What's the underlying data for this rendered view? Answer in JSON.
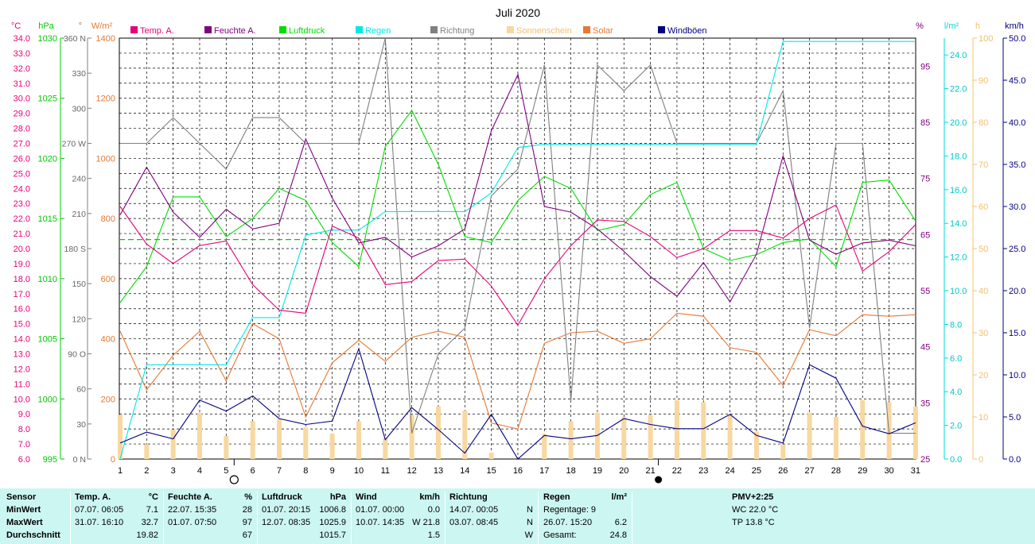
{
  "chart_data": {
    "type": "line",
    "title": "Juli 2020",
    "x": [
      1,
      2,
      3,
      4,
      5,
      6,
      7,
      8,
      9,
      10,
      11,
      12,
      13,
      14,
      15,
      16,
      17,
      18,
      19,
      20,
      21,
      22,
      23,
      24,
      25,
      26,
      27,
      28,
      29,
      30,
      31
    ],
    "axes": {
      "temp": {
        "unit": "°C",
        "range": [
          6.0,
          34.0
        ],
        "ticks": [
          "34.0",
          "33.0",
          "32.0",
          "31.0",
          "30.0",
          "29.0",
          "28.0",
          "27.0",
          "26.0",
          "25.0",
          "24.0",
          "23.0",
          "22.0",
          "21.0",
          "20.0",
          "19.0",
          "18.0",
          "17.0",
          "16.0",
          "15.0",
          "14.0",
          "13.0",
          "12.0",
          "11.0",
          "10.0",
          "9.0",
          "8.0",
          "7.0",
          "6.0"
        ],
        "color": "#e8007a"
      },
      "pressure": {
        "unit": "hPa",
        "range": [
          995,
          1030
        ],
        "ticks": [
          "1030",
          "1025",
          "1020",
          "1015",
          "1010",
          "1005",
          "1000",
          "995"
        ],
        "color": "#00c800"
      },
      "direction": {
        "unit": "°",
        "range": [
          0,
          360
        ],
        "ticks": [
          {
            "v": 360,
            "l": "360 N"
          },
          {
            "v": 330,
            "l": "330"
          },
          {
            "v": 300,
            "l": "300"
          },
          {
            "v": 270,
            "l": "270 W"
          },
          {
            "v": 240,
            "l": "240"
          },
          {
            "v": 210,
            "l": "210"
          },
          {
            "v": 180,
            "l": "180 S"
          },
          {
            "v": 150,
            "l": "150"
          },
          {
            "v": 120,
            "l": "120"
          },
          {
            "v": 90,
            "l": "90  O"
          },
          {
            "v": 60,
            "l": "60"
          },
          {
            "v": 30,
            "l": "30"
          },
          {
            "v": 0,
            "l": "0  N"
          }
        ],
        "color": "#808080"
      },
      "solar": {
        "unit": "W/m²",
        "range": [
          0,
          1400
        ],
        "ticks": [
          "1400",
          "1200",
          "1000",
          "800",
          "600",
          "400",
          "200",
          "0"
        ],
        "color": "#e87830"
      },
      "humidity": {
        "unit": "%",
        "range": [
          25,
          100
        ],
        "ticks": [
          "95",
          "85",
          "75",
          "65",
          "55",
          "45",
          "35",
          "25"
        ],
        "color": "#800080"
      },
      "rain": {
        "unit": "l/m²",
        "range": [
          0,
          25
        ],
        "ticks": [
          "24.0",
          "22.0",
          "20.0",
          "18.0",
          "16.0",
          "14.0",
          "12.0",
          "10.0",
          "8.0",
          "6.0",
          "4.0",
          "2.0",
          "0.0"
        ],
        "color": "#00d8d8"
      },
      "sun": {
        "unit": "h",
        "range": [
          0,
          100
        ],
        "ticks": [
          "100",
          "90",
          "80",
          "70",
          "60",
          "50",
          "40",
          "30",
          "20",
          "10",
          "0"
        ],
        "color": "#f0c070"
      },
      "wind": {
        "unit": "km/h",
        "range": [
          0,
          50
        ],
        "ticks": [
          "50.0",
          "45.0",
          "40.0",
          "35.0",
          "30.0",
          "25.0",
          "20.0",
          "15.0",
          "10.0",
          "5.0",
          "0.0"
        ],
        "color": "#000080"
      }
    },
    "series": [
      {
        "name": "Temp. A.",
        "axis": "temp",
        "color": "#e8007a",
        "values": [
          22.8,
          20.3,
          19.0,
          20.2,
          20.5,
          17.6,
          15.9,
          15.7,
          21.5,
          20.7,
          17.6,
          17.8,
          19.2,
          19.3,
          17.5,
          14.9,
          18.0,
          20.2,
          21.9,
          21.8,
          20.8,
          19.4,
          20.0,
          21.2,
          21.2,
          20.7,
          22.0,
          22.9,
          18.5,
          19.8,
          21.6
        ]
      },
      {
        "name": "Feuchte A.",
        "axis": "humidity",
        "color": "#800080",
        "values": [
          68.5,
          77.0,
          69.0,
          64.5,
          69.5,
          66.0,
          67.0,
          82.0,
          71.5,
          63.5,
          64.5,
          61.0,
          63.0,
          66.0,
          83.5,
          93.5,
          70.0,
          69.0,
          66.0,
          62.0,
          57.5,
          54.0,
          60.0,
          53.0,
          61.5,
          79.0,
          64.0,
          61.5,
          63.5,
          64.0,
          63.0
        ]
      },
      {
        "name": "Luftdruck",
        "axis": "pressure",
        "color": "#00dd00",
        "values": [
          1008.0,
          1011.0,
          1016.8,
          1016.8,
          1013.5,
          1015.0,
          1017.5,
          1016.5,
          1013.0,
          1011.0,
          1021.0,
          1024.0,
          1019.5,
          1013.5,
          1013.0,
          1016.5,
          1018.5,
          1017.5,
          1014.0,
          1014.5,
          1017.0,
          1018.0,
          1012.5,
          1011.5,
          1012.0,
          1013.0,
          1013.3,
          1011.0,
          1018.0,
          1018.2,
          1014.8
        ]
      },
      {
        "name": "Regen",
        "axis": "rain",
        "color": "#00e8e8",
        "values": [
          0.0,
          5.6,
          5.6,
          5.6,
          5.6,
          8.4,
          8.4,
          13.3,
          13.6,
          13.6,
          14.7,
          14.7,
          14.7,
          14.7,
          15.8,
          18.5,
          18.7,
          18.7,
          18.7,
          18.7,
          18.7,
          18.7,
          18.7,
          18.7,
          18.7,
          24.8,
          24.8,
          24.8,
          24.8,
          24.8,
          24.8
        ]
      },
      {
        "name": "Richtung",
        "axis": "direction",
        "color": "#808080",
        "values": [
          270,
          270,
          292,
          270,
          248,
          292,
          292,
          270,
          270,
          270,
          360,
          22,
          90,
          112,
          225,
          248,
          337,
          50,
          337,
          315,
          337,
          270,
          270,
          270,
          270,
          315,
          112,
          270,
          270,
          22,
          22
        ]
      },
      {
        "name": "Solar",
        "axis": "solar",
        "color": "#e87830",
        "values": [
          425,
          230,
          345,
          425,
          260,
          450,
          400,
          140,
          320,
          395,
          325,
          405,
          425,
          405,
          120,
          100,
          385,
          420,
          425,
          385,
          400,
          485,
          475,
          370,
          355,
          245,
          430,
          410,
          480,
          475,
          480
        ]
      },
      {
        "name": "Windböen",
        "axis": "wind",
        "color": "#000080",
        "values": [
          1.9,
          3.2,
          2.4,
          7.0,
          5.7,
          7.5,
          4.8,
          4.1,
          4.5,
          13.1,
          2.3,
          6.1,
          3.5,
          0.7,
          5.3,
          0.0,
          2.8,
          2.4,
          2.8,
          4.8,
          4.1,
          3.6,
          3.6,
          5.3,
          2.8,
          1.9,
          11.2,
          9.6,
          3.9,
          3.0,
          4.3
        ]
      }
    ],
    "bars": {
      "name": "Sonnenschein",
      "axis": "sun",
      "color": "#f8d8a0",
      "values": [
        10.5,
        3.5,
        7.0,
        11.0,
        5.5,
        9.0,
        9.5,
        7.5,
        6.0,
        9.0,
        5.0,
        10.5,
        12.5,
        11.5,
        1.5,
        0,
        6.0,
        9.0,
        11.0,
        10.0,
        10.5,
        14.0,
        13.5,
        10.5,
        6.5,
        3.5,
        11.0,
        10.0,
        14.0,
        13.5,
        12.5
      ]
    },
    "reference_line": {
      "axis": "pressure",
      "value": 1013.25,
      "color": "#00cc00"
    },
    "moon_phases": [
      {
        "x": 5,
        "phase": "full"
      },
      {
        "x": 21,
        "phase": "new"
      }
    ],
    "grid": true,
    "legend_placement": "top"
  },
  "headers": {
    "left_units": [
      "°C",
      "hPa",
      "°",
      "W/m²"
    ],
    "right_units": [
      "%",
      "l/m²",
      "h",
      "km/h"
    ]
  },
  "legend": [
    {
      "label": "Temp. A.",
      "color": "#e8007a"
    },
    {
      "label": "Feuchte A.",
      "color": "#800080"
    },
    {
      "label": "Luftdruck",
      "color": "#00dd00"
    },
    {
      "label": "Regen",
      "color": "#00e8e8"
    },
    {
      "label": "Richtung",
      "color": "#808080"
    },
    {
      "label": "Sonnenschein",
      "color": "#f8d8a0"
    },
    {
      "label": "Solar",
      "color": "#e87830"
    },
    {
      "label": "Windböen",
      "color": "#000080"
    }
  ],
  "stats": {
    "sensor": {
      "title": "Sensor",
      "rows": [
        "MinWert",
        "MaxWert",
        "Durchschnitt"
      ]
    },
    "temp": {
      "title": "Temp. A.",
      "unit": "°C",
      "min_time": "07.07.  06:05",
      "min_val": "7.1",
      "max_time": "31.07.  16:10",
      "max_val": "32.7",
      "avg": "19.82"
    },
    "humidity": {
      "title": "Feuchte A.",
      "unit": "%",
      "min_time": "22.07.  15:35",
      "min_val": "28",
      "max_time": "01.07.  07:50",
      "max_val": "97",
      "avg": "67"
    },
    "pressure": {
      "title": "Luftdruck",
      "unit": "hPa",
      "min_time": "01.07.  20:15",
      "min_val": "1006.8",
      "max_time": "12.07.  08:35",
      "max_val": "1025.9",
      "avg": "1015.7"
    },
    "wind": {
      "title": "Wind",
      "unit": "km/h",
      "min_time": "01.07.  00:00",
      "min_val": "0.0",
      "max_time": "10.07.  14:35",
      "max_val": "W 21.8",
      "avg": "1.5"
    },
    "direction": {
      "title": "Richtung",
      "min_time": "14.07.  00:05",
      "min_val": "N",
      "max_time": "03.07.  08:45",
      "max_val": "N",
      "avg": "W"
    },
    "rain": {
      "title": "Regen",
      "unit": "l/m²",
      "days_label": "Regentage: 9",
      "max_time": "26.07.  15:20",
      "max_val": "6.2",
      "total_label": "Gesamt:",
      "total_val": "24.8"
    },
    "pmv": {
      "title": "PMV+2:25",
      "wc": "WC 22.0 °C",
      "tp": "TP 13.8 °C"
    }
  }
}
